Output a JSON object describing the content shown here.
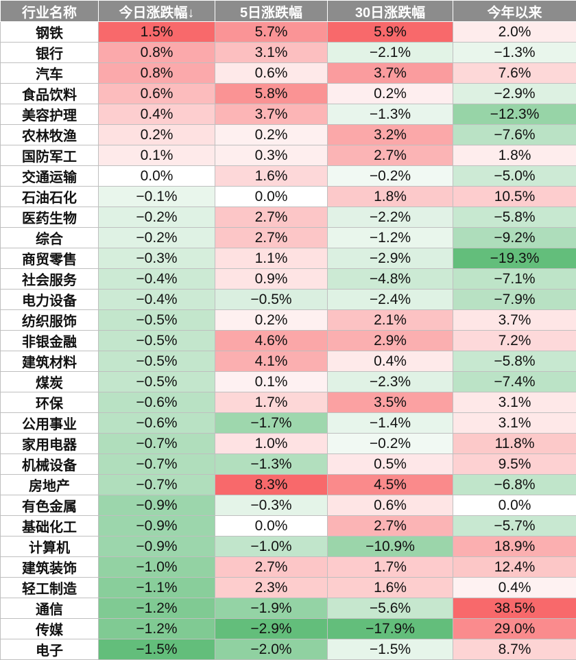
{
  "chart_data": {
    "type": "table",
    "columns": [
      "行业名称",
      "今日涨跌幅↓",
      "5日涨跌幅",
      "30日涨跌幅",
      "今年以来"
    ],
    "rows": [
      {
        "name": "钢铁",
        "values": [
          "1.5%",
          "5.7%",
          "5.9%",
          "2.0%"
        ]
      },
      {
        "name": "银行",
        "values": [
          "0.8%",
          "3.1%",
          "−2.1%",
          "−1.3%"
        ]
      },
      {
        "name": "汽车",
        "values": [
          "0.8%",
          "0.6%",
          "3.7%",
          "7.6%"
        ]
      },
      {
        "name": "食品饮料",
        "values": [
          "0.6%",
          "5.8%",
          "0.2%",
          "−2.9%"
        ]
      },
      {
        "name": "美容护理",
        "values": [
          "0.4%",
          "3.7%",
          "−1.3%",
          "−12.3%"
        ]
      },
      {
        "name": "农林牧渔",
        "values": [
          "0.2%",
          "0.2%",
          "3.2%",
          "−7.6%"
        ]
      },
      {
        "name": "国防军工",
        "values": [
          "0.1%",
          "0.3%",
          "2.7%",
          "1.8%"
        ]
      },
      {
        "name": "交通运输",
        "values": [
          "0.0%",
          "1.6%",
          "−0.2%",
          "−5.0%"
        ]
      },
      {
        "name": "石油石化",
        "values": [
          "−0.1%",
          "0.0%",
          "1.8%",
          "10.5%"
        ]
      },
      {
        "name": "医药生物",
        "values": [
          "−0.2%",
          "2.7%",
          "−2.2%",
          "−5.8%"
        ]
      },
      {
        "name": "综合",
        "values": [
          "−0.2%",
          "2.7%",
          "−1.2%",
          "−9.2%"
        ]
      },
      {
        "name": "商贸零售",
        "values": [
          "−0.3%",
          "1.1%",
          "−2.9%",
          "−19.3%"
        ]
      },
      {
        "name": "社会服务",
        "values": [
          "−0.4%",
          "0.9%",
          "−4.8%",
          "−7.1%"
        ]
      },
      {
        "name": "电力设备",
        "values": [
          "−0.4%",
          "−0.5%",
          "−2.4%",
          "−7.9%"
        ]
      },
      {
        "name": "纺织服饰",
        "values": [
          "−0.5%",
          "0.2%",
          "2.1%",
          "3.7%"
        ]
      },
      {
        "name": "非银金融",
        "values": [
          "−0.5%",
          "4.6%",
          "2.9%",
          "7.2%"
        ]
      },
      {
        "name": "建筑材料",
        "values": [
          "−0.5%",
          "4.1%",
          "0.4%",
          "−5.8%"
        ]
      },
      {
        "name": "煤炭",
        "values": [
          "−0.5%",
          "0.1%",
          "−2.3%",
          "−7.4%"
        ]
      },
      {
        "name": "环保",
        "values": [
          "−0.6%",
          "1.7%",
          "3.5%",
          "3.1%"
        ]
      },
      {
        "name": "公用事业",
        "values": [
          "−0.6%",
          "−1.7%",
          "−1.4%",
          "3.1%"
        ]
      },
      {
        "name": "家用电器",
        "values": [
          "−0.7%",
          "1.0%",
          "−0.2%",
          "11.8%"
        ]
      },
      {
        "name": "机械设备",
        "values": [
          "−0.7%",
          "−1.3%",
          "0.5%",
          "9.5%"
        ]
      },
      {
        "name": "房地产",
        "values": [
          "−0.7%",
          "8.3%",
          "4.5%",
          "−6.8%"
        ]
      },
      {
        "name": "有色金属",
        "values": [
          "−0.9%",
          "−0.3%",
          "0.6%",
          "0.0%"
        ]
      },
      {
        "name": "基础化工",
        "values": [
          "−0.9%",
          "0.0%",
          "2.7%",
          "−5.7%"
        ]
      },
      {
        "name": "计算机",
        "values": [
          "−0.9%",
          "−1.0%",
          "−10.9%",
          "18.9%"
        ]
      },
      {
        "name": "建筑装饰",
        "values": [
          "−1.0%",
          "2.7%",
          "1.7%",
          "12.4%"
        ]
      },
      {
        "name": "轻工制造",
        "values": [
          "−1.1%",
          "2.3%",
          "1.6%",
          "0.4%"
        ]
      },
      {
        "name": "通信",
        "values": [
          "−1.2%",
          "−1.9%",
          "−5.6%",
          "38.5%"
        ]
      },
      {
        "name": "传媒",
        "values": [
          "−1.2%",
          "−2.9%",
          "−17.9%",
          "29.0%"
        ]
      },
      {
        "name": "电子",
        "values": [
          "−1.5%",
          "−2.0%",
          "−1.5%",
          "8.7%"
        ]
      }
    ],
    "colors": {
      "positive": "#f8696b",
      "negative": "#63be7b",
      "neutral": "#ffffff",
      "header_bg": "#8c8c8c",
      "header_text": "#ffffff"
    }
  }
}
